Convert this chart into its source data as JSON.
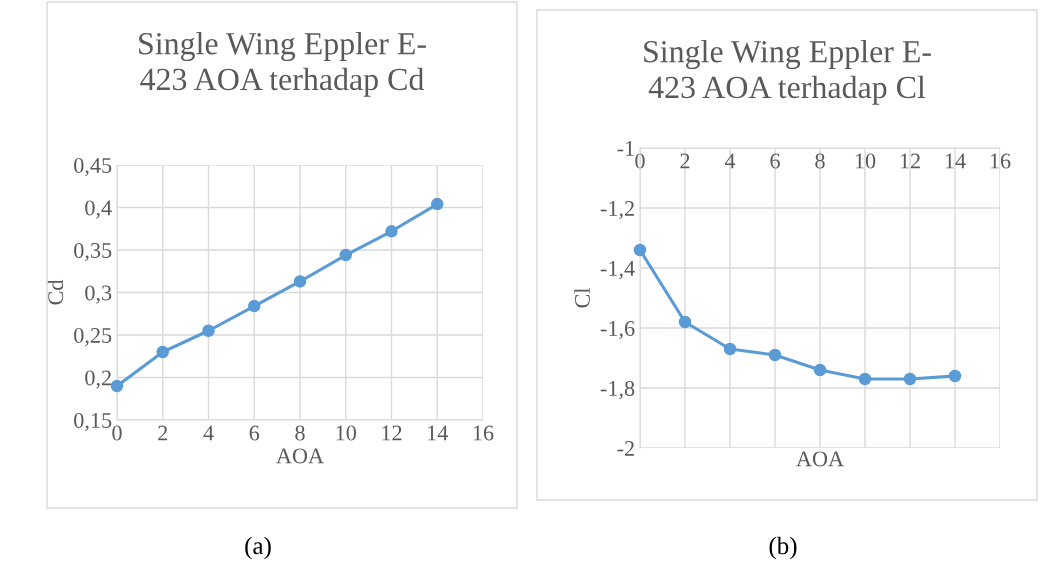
{
  "chart_data": [
    {
      "type": "line",
      "title": "Single Wing Eppler E-423 AOA terhadap Cd",
      "xlabel": "AOA",
      "ylabel": "Cd",
      "x": [
        0,
        2,
        4,
        6,
        8,
        10,
        12,
        14
      ],
      "series": [
        {
          "color": "#5b9bd5",
          "values": [
            0.19,
            0.23,
            0.255,
            0.284,
            0.313,
            0.344,
            0.372,
            0.404
          ]
        }
      ],
      "xlim": [
        0,
        16
      ],
      "xticks": [
        0,
        2,
        4,
        6,
        8,
        10,
        12,
        14,
        16
      ],
      "ylim": [
        0.15,
        0.45
      ],
      "yticks": [
        {
          "value": 0.15,
          "label": "0,15"
        },
        {
          "value": 0.2,
          "label": "0,2"
        },
        {
          "value": 0.25,
          "label": "0,25"
        },
        {
          "value": 0.3,
          "label": "0,3"
        },
        {
          "value": 0.35,
          "label": "0,35"
        },
        {
          "value": 0.4,
          "label": "0,4"
        },
        {
          "value": 0.45,
          "label": "0,45"
        }
      ],
      "grid": true,
      "marker": "circle",
      "line_style": "solid",
      "annotations": [
        "(a)"
      ]
    },
    {
      "type": "line",
      "title": "Single Wing Eppler E-423 AOA terhadap Cl",
      "xlabel": "AOA",
      "ylabel": "Cl",
      "x": [
        0,
        2,
        4,
        6,
        8,
        10,
        12,
        14
      ],
      "series": [
        {
          "color": "#5b9bd5",
          "values": [
            -1.34,
            -1.58,
            -1.67,
            -1.69,
            -1.74,
            -1.77,
            -1.77,
            -1.76
          ]
        }
      ],
      "xlim": [
        0,
        16
      ],
      "xticks": [
        0,
        2,
        4,
        6,
        8,
        10,
        12,
        14,
        16
      ],
      "ylim": [
        -2,
        -1
      ],
      "yticks": [
        {
          "value": -2,
          "label": "-2"
        },
        {
          "value": -1.8,
          "label": "-1,8"
        },
        {
          "value": -1.6,
          "label": "-1,6"
        },
        {
          "value": -1.4,
          "label": "-1,4"
        },
        {
          "value": -1.2,
          "label": "-1,2"
        },
        {
          "value": -1,
          "label": "-1"
        }
      ],
      "grid": true,
      "marker": "circle",
      "line_style": "solid",
      "annotations": [
        "(b)"
      ]
    }
  ]
}
